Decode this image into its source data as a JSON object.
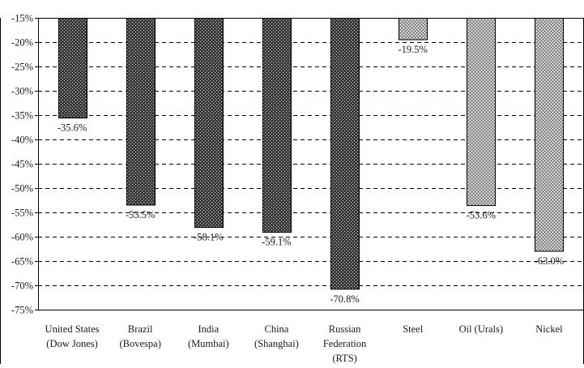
{
  "chart_data": {
    "type": "bar",
    "title": "",
    "xlabel": "",
    "ylabel": "",
    "categories": [
      [
        "United States",
        "(Dow Jones)"
      ],
      [
        "Brazil",
        "(Bovespa)"
      ],
      [
        "India",
        "(Mumbai)"
      ],
      [
        "China",
        "(Shanghai)"
      ],
      [
        "Russian",
        "Federation",
        "(RTS)"
      ],
      [
        "Steel"
      ],
      [
        "Oil (Urals)"
      ],
      [
        "Nickel"
      ]
    ],
    "values": [
      -35.6,
      -53.5,
      -58.1,
      -59.1,
      -70.8,
      -19.5,
      -53.6,
      -63.0
    ],
    "data_labels": [
      "-35.6%",
      "-53.5%",
      "-58.1%",
      "-59.1%",
      "-70.8%",
      "-19.5%",
      "-53.6%",
      "-63.0%"
    ],
    "bar_patterns": [
      "dark",
      "dark",
      "dark",
      "dark",
      "dark",
      "light",
      "light",
      "light"
    ],
    "ylim": [
      -75,
      -15
    ],
    "y_ticks": [
      -15,
      -20,
      -25,
      -30,
      -35,
      -40,
      -45,
      -50,
      -55,
      -60,
      -65,
      -70,
      -75
    ],
    "y_tick_labels": [
      "-15%",
      "-20%",
      "-25%",
      "-30%",
      "-35%",
      "-40%",
      "-45%",
      "-50%",
      "-55%",
      "-60%",
      "-65%",
      "-70%",
      "-75%"
    ],
    "grid": "horizontal dashed",
    "legend": "none",
    "colors": {
      "dark_bar": "#3a3a3a",
      "light_bar": "#9a9a9a",
      "grid": "#000000",
      "axis": "#000000"
    }
  }
}
